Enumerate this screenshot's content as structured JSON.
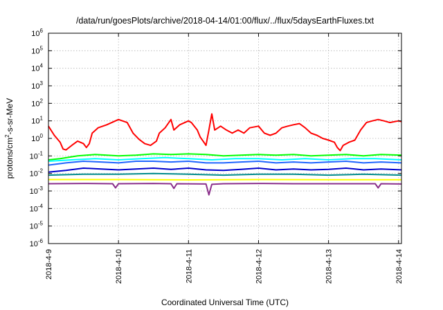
{
  "chart_data": {
    "type": "line",
    "title": "/data/run/goesPlots/archive/2018-04-14/01:00/flux/../flux/5daysEarthFluxes.txt",
    "xlabel": "Coordinated Universal Time (UTC)",
    "ylabel": {
      "base": "protons/cm",
      "exponent": "2",
      "rest": "-s-sr-MeV"
    },
    "y_scale": "log",
    "ylim": [
      1e-06,
      1000000.0
    ],
    "y_ticks": [
      {
        "value": 1e-06,
        "base": "10",
        "exp": "-6"
      },
      {
        "value": 1e-05,
        "base": "10",
        "exp": "-5"
      },
      {
        "value": 0.0001,
        "base": "10",
        "exp": "-4"
      },
      {
        "value": 0.001,
        "base": "10",
        "exp": "-3"
      },
      {
        "value": 0.01,
        "base": "10",
        "exp": "-2"
      },
      {
        "value": 0.1,
        "base": "10",
        "exp": "-1"
      },
      {
        "value": 1,
        "base": "10",
        "exp": "0"
      },
      {
        "value": 10,
        "base": "10",
        "exp": "1"
      },
      {
        "value": 100,
        "base": "10",
        "exp": "2"
      },
      {
        "value": 1000,
        "base": "10",
        "exp": "3"
      },
      {
        "value": 10000,
        "base": "10",
        "exp": "4"
      },
      {
        "value": 100000,
        "base": "10",
        "exp": "5"
      },
      {
        "value": 1000000,
        "base": "10",
        "exp": "6"
      }
    ],
    "xlim": [
      "2018-04-09T00:00",
      "2018-04-14T01:00"
    ],
    "x_ticks": [
      {
        "value": "2018-04-09T00:00",
        "label": "2018-4-9"
      },
      {
        "value": "2018-04-10T00:00",
        "label": "2018-4-10"
      },
      {
        "value": "2018-04-11T00:00",
        "label": "2018-4-11"
      },
      {
        "value": "2018-04-12T00:00",
        "label": "2018-4-12"
      },
      {
        "value": "2018-04-13T00:00",
        "label": "2018-4-13"
      },
      {
        "value": "2018-04-14T00:00",
        "label": "2018-4-14"
      }
    ],
    "grid": true,
    "legend": "none",
    "series": [
      {
        "color": "#ff0000",
        "points": [
          [
            "2018-04-09T00:00",
            5
          ],
          [
            "2018-04-09T02:00",
            1.5
          ],
          [
            "2018-04-09T04:00",
            0.6
          ],
          [
            "2018-04-09T05:00",
            0.25
          ],
          [
            "2018-04-09T06:00",
            0.22
          ],
          [
            "2018-04-09T08:00",
            0.4
          ],
          [
            "2018-04-09T10:00",
            0.7
          ],
          [
            "2018-04-09T12:00",
            0.5
          ],
          [
            "2018-04-09T13:00",
            0.3
          ],
          [
            "2018-04-09T14:00",
            0.5
          ],
          [
            "2018-04-09T15:00",
            2
          ],
          [
            "2018-04-09T17:00",
            4
          ],
          [
            "2018-04-09T20:00",
            6
          ],
          [
            "2018-04-10T00:00",
            12
          ],
          [
            "2018-04-10T03:00",
            8
          ],
          [
            "2018-04-10T05:00",
            2
          ],
          [
            "2018-04-10T07:00",
            0.9
          ],
          [
            "2018-04-10T09:00",
            0.5
          ],
          [
            "2018-04-10T11:00",
            0.4
          ],
          [
            "2018-04-10T13:00",
            0.7
          ],
          [
            "2018-04-10T14:00",
            2
          ],
          [
            "2018-04-10T16:00",
            4
          ],
          [
            "2018-04-10T18:00",
            12
          ],
          [
            "2018-04-10T19:00",
            3
          ],
          [
            "2018-04-10T21:00",
            6
          ],
          [
            "2018-04-11T00:00",
            10
          ],
          [
            "2018-04-11T01:00",
            8
          ],
          [
            "2018-04-11T03:00",
            3
          ],
          [
            "2018-04-11T04:00",
            1.2
          ],
          [
            "2018-04-11T05:00",
            0.7
          ],
          [
            "2018-04-11T06:00",
            0.4
          ],
          [
            "2018-04-11T07:00",
            3
          ],
          [
            "2018-04-11T08:00",
            25
          ],
          [
            "2018-04-11T09:00",
            3
          ],
          [
            "2018-04-11T11:00",
            5
          ],
          [
            "2018-04-11T13:00",
            3
          ],
          [
            "2018-04-11T15:00",
            2
          ],
          [
            "2018-04-11T17:00",
            3
          ],
          [
            "2018-04-11T19:00",
            2
          ],
          [
            "2018-04-11T21:00",
            4
          ],
          [
            "2018-04-12T00:00",
            5
          ],
          [
            "2018-04-12T02:00",
            2
          ],
          [
            "2018-04-12T04:00",
            1.5
          ],
          [
            "2018-04-12T06:00",
            2
          ],
          [
            "2018-04-12T08:00",
            4
          ],
          [
            "2018-04-12T10:00",
            5
          ],
          [
            "2018-04-12T12:00",
            6
          ],
          [
            "2018-04-12T14:00",
            7
          ],
          [
            "2018-04-12T16:00",
            4
          ],
          [
            "2018-04-12T18:00",
            2
          ],
          [
            "2018-04-12T20:00",
            1.5
          ],
          [
            "2018-04-12T22:00",
            1
          ],
          [
            "2018-04-13T00:00",
            0.8
          ],
          [
            "2018-04-13T02:00",
            0.6
          ],
          [
            "2018-04-13T03:00",
            0.3
          ],
          [
            "2018-04-13T04:00",
            0.2
          ],
          [
            "2018-04-13T05:00",
            0.4
          ],
          [
            "2018-04-13T07:00",
            0.6
          ],
          [
            "2018-04-13T09:00",
            0.8
          ],
          [
            "2018-04-13T11:00",
            3
          ],
          [
            "2018-04-13T13:00",
            8
          ],
          [
            "2018-04-13T15:00",
            10
          ],
          [
            "2018-04-13T17:00",
            12
          ],
          [
            "2018-04-13T19:00",
            10
          ],
          [
            "2018-04-13T21:00",
            8
          ],
          [
            "2018-04-14T00:00",
            10
          ],
          [
            "2018-04-14T01:00",
            9
          ]
        ]
      },
      {
        "color": "#00ff00",
        "points": [
          [
            "2018-04-09T00:00",
            0.06
          ],
          [
            "2018-04-09T04:00",
            0.07
          ],
          [
            "2018-04-09T10:00",
            0.1
          ],
          [
            "2018-04-09T16:00",
            0.12
          ],
          [
            "2018-04-10T00:00",
            0.1
          ],
          [
            "2018-04-10T06:00",
            0.11
          ],
          [
            "2018-04-10T12:00",
            0.13
          ],
          [
            "2018-04-10T18:00",
            0.12
          ],
          [
            "2018-04-11T00:00",
            0.13
          ],
          [
            "2018-04-11T06:00",
            0.12
          ],
          [
            "2018-04-11T12:00",
            0.1
          ],
          [
            "2018-04-11T18:00",
            0.11
          ],
          [
            "2018-04-12T00:00",
            0.12
          ],
          [
            "2018-04-12T06:00",
            0.11
          ],
          [
            "2018-04-12T12:00",
            0.12
          ],
          [
            "2018-04-12T18:00",
            0.1
          ],
          [
            "2018-04-13T00:00",
            0.11
          ],
          [
            "2018-04-13T06:00",
            0.12
          ],
          [
            "2018-04-13T12:00",
            0.1
          ],
          [
            "2018-04-13T18:00",
            0.12
          ],
          [
            "2018-04-14T01:00",
            0.11
          ]
        ]
      },
      {
        "color": "#00ffff",
        "points": [
          [
            "2018-04-09T00:00",
            0.05
          ],
          [
            "2018-04-09T08:00",
            0.06
          ],
          [
            "2018-04-09T16:00",
            0.07
          ],
          [
            "2018-04-10T00:00",
            0.06
          ],
          [
            "2018-04-10T08:00",
            0.07
          ],
          [
            "2018-04-10T16:00",
            0.08
          ],
          [
            "2018-04-11T00:00",
            0.07
          ],
          [
            "2018-04-11T08:00",
            0.06
          ],
          [
            "2018-04-11T16:00",
            0.07
          ],
          [
            "2018-04-12T00:00",
            0.07
          ],
          [
            "2018-04-12T08:00",
            0.06
          ],
          [
            "2018-04-12T16:00",
            0.07
          ],
          [
            "2018-04-13T00:00",
            0.06
          ],
          [
            "2018-04-13T08:00",
            0.07
          ],
          [
            "2018-04-13T16:00",
            0.07
          ],
          [
            "2018-04-14T01:00",
            0.06
          ]
        ]
      },
      {
        "color": "#1e64ff",
        "points": [
          [
            "2018-04-09T00:00",
            0.03
          ],
          [
            "2018-04-09T06:00",
            0.04
          ],
          [
            "2018-04-09T12:00",
            0.05
          ],
          [
            "2018-04-09T18:00",
            0.045
          ],
          [
            "2018-04-10T00:00",
            0.04
          ],
          [
            "2018-04-10T06:00",
            0.05
          ],
          [
            "2018-04-10T12:00",
            0.05
          ],
          [
            "2018-04-10T18:00",
            0.045
          ],
          [
            "2018-04-11T00:00",
            0.05
          ],
          [
            "2018-04-11T06:00",
            0.04
          ],
          [
            "2018-04-11T12:00",
            0.04
          ],
          [
            "2018-04-11T18:00",
            0.045
          ],
          [
            "2018-04-12T00:00",
            0.05
          ],
          [
            "2018-04-12T06:00",
            0.04
          ],
          [
            "2018-04-12T12:00",
            0.045
          ],
          [
            "2018-04-12T18:00",
            0.04
          ],
          [
            "2018-04-13T00:00",
            0.045
          ],
          [
            "2018-04-13T06:00",
            0.05
          ],
          [
            "2018-04-13T12:00",
            0.04
          ],
          [
            "2018-04-13T18:00",
            0.045
          ],
          [
            "2018-04-14T01:00",
            0.04
          ]
        ]
      },
      {
        "color": "#0000cd",
        "points": [
          [
            "2018-04-09T00:00",
            0.012
          ],
          [
            "2018-04-09T06:00",
            0.015
          ],
          [
            "2018-04-09T12:00",
            0.02
          ],
          [
            "2018-04-09T18:00",
            0.018
          ],
          [
            "2018-04-10T00:00",
            0.016
          ],
          [
            "2018-04-10T06:00",
            0.018
          ],
          [
            "2018-04-10T12:00",
            0.02
          ],
          [
            "2018-04-10T18:00",
            0.017
          ],
          [
            "2018-04-11T00:00",
            0.02
          ],
          [
            "2018-04-11T06:00",
            0.016
          ],
          [
            "2018-04-11T12:00",
            0.015
          ],
          [
            "2018-04-11T18:00",
            0.017
          ],
          [
            "2018-04-12T00:00",
            0.02
          ],
          [
            "2018-04-12T06:00",
            0.016
          ],
          [
            "2018-04-12T12:00",
            0.018
          ],
          [
            "2018-04-12T18:00",
            0.016
          ],
          [
            "2018-04-13T00:00",
            0.017
          ],
          [
            "2018-04-13T06:00",
            0.02
          ],
          [
            "2018-04-13T12:00",
            0.016
          ],
          [
            "2018-04-13T18:00",
            0.018
          ],
          [
            "2018-04-14T01:00",
            0.016
          ]
        ]
      },
      {
        "color": "#008b8b",
        "points": [
          [
            "2018-04-09T00:00",
            0.008
          ],
          [
            "2018-04-09T12:00",
            0.009
          ],
          [
            "2018-04-10T00:00",
            0.009
          ],
          [
            "2018-04-10T12:00",
            0.01
          ],
          [
            "2018-04-11T00:00",
            0.009
          ],
          [
            "2018-04-11T12:00",
            0.008
          ],
          [
            "2018-04-12T00:00",
            0.009
          ],
          [
            "2018-04-12T12:00",
            0.009
          ],
          [
            "2018-04-13T00:00",
            0.008
          ],
          [
            "2018-04-13T12:00",
            0.009
          ],
          [
            "2018-04-14T01:00",
            0.008
          ]
        ]
      },
      {
        "color": "#ffff00",
        "points": [
          [
            "2018-04-09T00:00",
            0.0045
          ],
          [
            "2018-04-10T00:00",
            0.0045
          ],
          [
            "2018-04-11T00:00",
            0.0043
          ],
          [
            "2018-04-12T00:00",
            0.0045
          ],
          [
            "2018-04-13T00:00",
            0.0044
          ],
          [
            "2018-04-14T01:00",
            0.0044
          ]
        ]
      },
      {
        "color": "#8b2f8b",
        "points": [
          [
            "2018-04-09T00:00",
            0.0026
          ],
          [
            "2018-04-09T12:00",
            0.0027
          ],
          [
            "2018-04-09T22:00",
            0.0026
          ],
          [
            "2018-04-09T23:00",
            0.0015
          ],
          [
            "2018-04-10T00:00",
            0.0026
          ],
          [
            "2018-04-10T12:00",
            0.0027
          ],
          [
            "2018-04-10T18:00",
            0.0026
          ],
          [
            "2018-04-10T19:00",
            0.0014
          ],
          [
            "2018-04-10T20:00",
            0.0026
          ],
          [
            "2018-04-11T06:00",
            0.0025
          ],
          [
            "2018-04-11T07:00",
            0.0006
          ],
          [
            "2018-04-11T08:00",
            0.0024
          ],
          [
            "2018-04-11T12:00",
            0.0026
          ],
          [
            "2018-04-12T00:00",
            0.0027
          ],
          [
            "2018-04-12T12:00",
            0.0026
          ],
          [
            "2018-04-13T00:00",
            0.0026
          ],
          [
            "2018-04-13T16:00",
            0.0026
          ],
          [
            "2018-04-13T17:00",
            0.0015
          ],
          [
            "2018-04-13T18:00",
            0.0026
          ],
          [
            "2018-04-14T01:00",
            0.0025
          ]
        ]
      }
    ]
  }
}
